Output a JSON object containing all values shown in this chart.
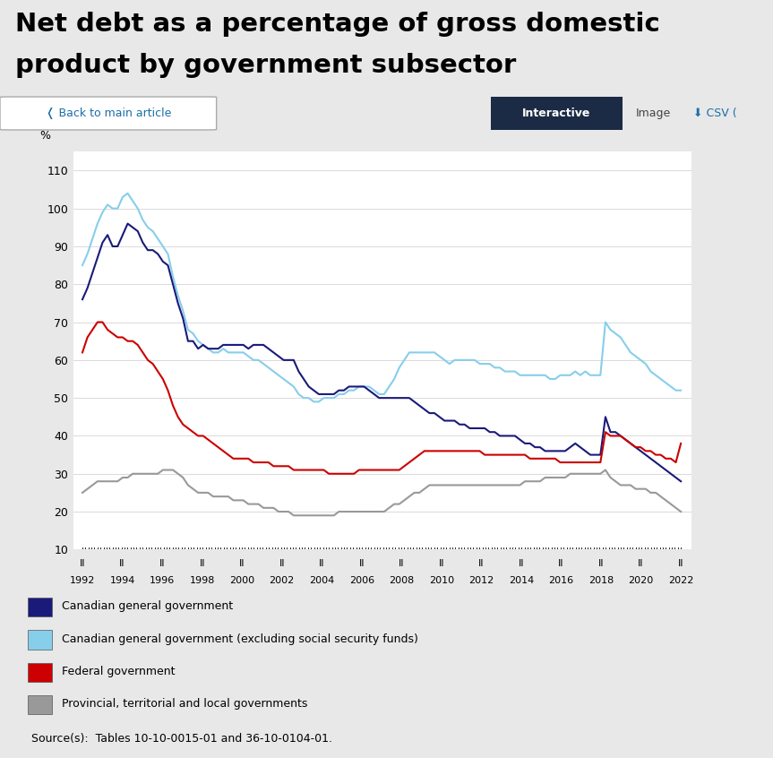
{
  "title_line1": "Net debt as a percentage of gross domestic",
  "title_line2": "product by government subsector",
  "ylabel": "%",
  "ylim": [
    10,
    115
  ],
  "yticks": [
    10,
    20,
    30,
    40,
    50,
    60,
    70,
    80,
    90,
    100,
    110
  ],
  "bg_outer": "#e8e8e8",
  "bg_inner": "#ffffff",
  "series": {
    "canadian_general": {
      "color": "#1a1a7a",
      "label": "Canadian general government",
      "values": [
        76,
        79,
        83,
        87,
        91,
        93,
        90,
        90,
        93,
        96,
        95,
        94,
        91,
        89,
        89,
        88,
        86,
        85,
        80,
        75,
        71,
        65,
        65,
        63,
        64,
        63,
        63,
        63,
        64,
        64,
        64,
        64,
        64,
        63,
        64,
        64,
        64,
        63,
        62,
        61,
        60,
        60,
        60,
        57,
        55,
        53,
        52,
        51,
        51,
        51,
        51,
        52,
        52,
        53,
        53,
        53,
        53,
        52,
        51,
        50,
        50,
        50,
        50,
        50,
        50,
        50,
        49,
        48,
        47,
        46,
        46,
        45,
        44,
        44,
        44,
        43,
        43,
        42,
        42,
        42,
        42,
        41,
        41,
        40,
        40,
        40,
        40,
        39,
        38,
        38,
        37,
        37,
        36,
        36,
        36,
        36,
        36,
        37,
        38,
        37,
        36,
        35,
        35,
        35,
        45,
        41,
        41,
        40,
        39,
        38,
        37,
        36,
        35,
        34,
        33,
        32,
        31,
        30,
        29,
        28
      ]
    },
    "canadian_excl": {
      "color": "#87ceeb",
      "label": "Canadian general government (excluding social security funds)",
      "values": [
        85,
        88,
        92,
        96,
        99,
        101,
        100,
        100,
        103,
        104,
        102,
        100,
        97,
        95,
        94,
        92,
        90,
        88,
        82,
        77,
        73,
        68,
        67,
        65,
        64,
        63,
        62,
        62,
        63,
        62,
        62,
        62,
        62,
        61,
        60,
        60,
        59,
        58,
        57,
        56,
        55,
        54,
        53,
        51,
        50,
        50,
        49,
        49,
        50,
        50,
        50,
        51,
        51,
        52,
        52,
        53,
        53,
        53,
        52,
        51,
        51,
        53,
        55,
        58,
        60,
        62,
        62,
        62,
        62,
        62,
        62,
        61,
        60,
        59,
        60,
        60,
        60,
        60,
        60,
        59,
        59,
        59,
        58,
        58,
        57,
        57,
        57,
        56,
        56,
        56,
        56,
        56,
        56,
        55,
        55,
        56,
        56,
        56,
        57,
        56,
        57,
        56,
        56,
        56,
        70,
        68,
        67,
        66,
        64,
        62,
        61,
        60,
        59,
        57,
        56,
        55,
        54,
        53,
        52,
        52
      ]
    },
    "federal": {
      "color": "#cc0000",
      "label": "Federal government",
      "values": [
        62,
        66,
        68,
        70,
        70,
        68,
        67,
        66,
        66,
        65,
        65,
        64,
        62,
        60,
        59,
        57,
        55,
        52,
        48,
        45,
        43,
        42,
        41,
        40,
        40,
        39,
        38,
        37,
        36,
        35,
        34,
        34,
        34,
        34,
        33,
        33,
        33,
        33,
        32,
        32,
        32,
        32,
        31,
        31,
        31,
        31,
        31,
        31,
        31,
        30,
        30,
        30,
        30,
        30,
        30,
        31,
        31,
        31,
        31,
        31,
        31,
        31,
        31,
        31,
        32,
        33,
        34,
        35,
        36,
        36,
        36,
        36,
        36,
        36,
        36,
        36,
        36,
        36,
        36,
        36,
        35,
        35,
        35,
        35,
        35,
        35,
        35,
        35,
        35,
        34,
        34,
        34,
        34,
        34,
        34,
        33,
        33,
        33,
        33,
        33,
        33,
        33,
        33,
        33,
        41,
        40,
        40,
        40,
        39,
        38,
        37,
        37,
        36,
        36,
        35,
        35,
        34,
        34,
        33,
        38
      ]
    },
    "provincial": {
      "color": "#999999",
      "label": "Provincial, territorial and local governments",
      "values": [
        25,
        26,
        27,
        28,
        28,
        28,
        28,
        28,
        29,
        29,
        30,
        30,
        30,
        30,
        30,
        30,
        31,
        31,
        31,
        30,
        29,
        27,
        26,
        25,
        25,
        25,
        24,
        24,
        24,
        24,
        23,
        23,
        23,
        22,
        22,
        22,
        21,
        21,
        21,
        20,
        20,
        20,
        19,
        19,
        19,
        19,
        19,
        19,
        19,
        19,
        19,
        20,
        20,
        20,
        20,
        20,
        20,
        20,
        20,
        20,
        20,
        21,
        22,
        22,
        23,
        24,
        25,
        25,
        26,
        27,
        27,
        27,
        27,
        27,
        27,
        27,
        27,
        27,
        27,
        27,
        27,
        27,
        27,
        27,
        27,
        27,
        27,
        27,
        28,
        28,
        28,
        28,
        29,
        29,
        29,
        29,
        29,
        30,
        30,
        30,
        30,
        30,
        30,
        30,
        31,
        29,
        28,
        27,
        27,
        27,
        26,
        26,
        26,
        25,
        25,
        24,
        23,
        22,
        21,
        20
      ]
    }
  },
  "xtick_years": [
    1992,
    1994,
    1996,
    1998,
    2000,
    2002,
    2004,
    2006,
    2008,
    2010,
    2012,
    2014,
    2016,
    2018,
    2020,
    2022
  ],
  "x_start": 1992.25,
  "x_end": 2022.25,
  "xlim_left": 1991.8,
  "xlim_right": 2022.8
}
